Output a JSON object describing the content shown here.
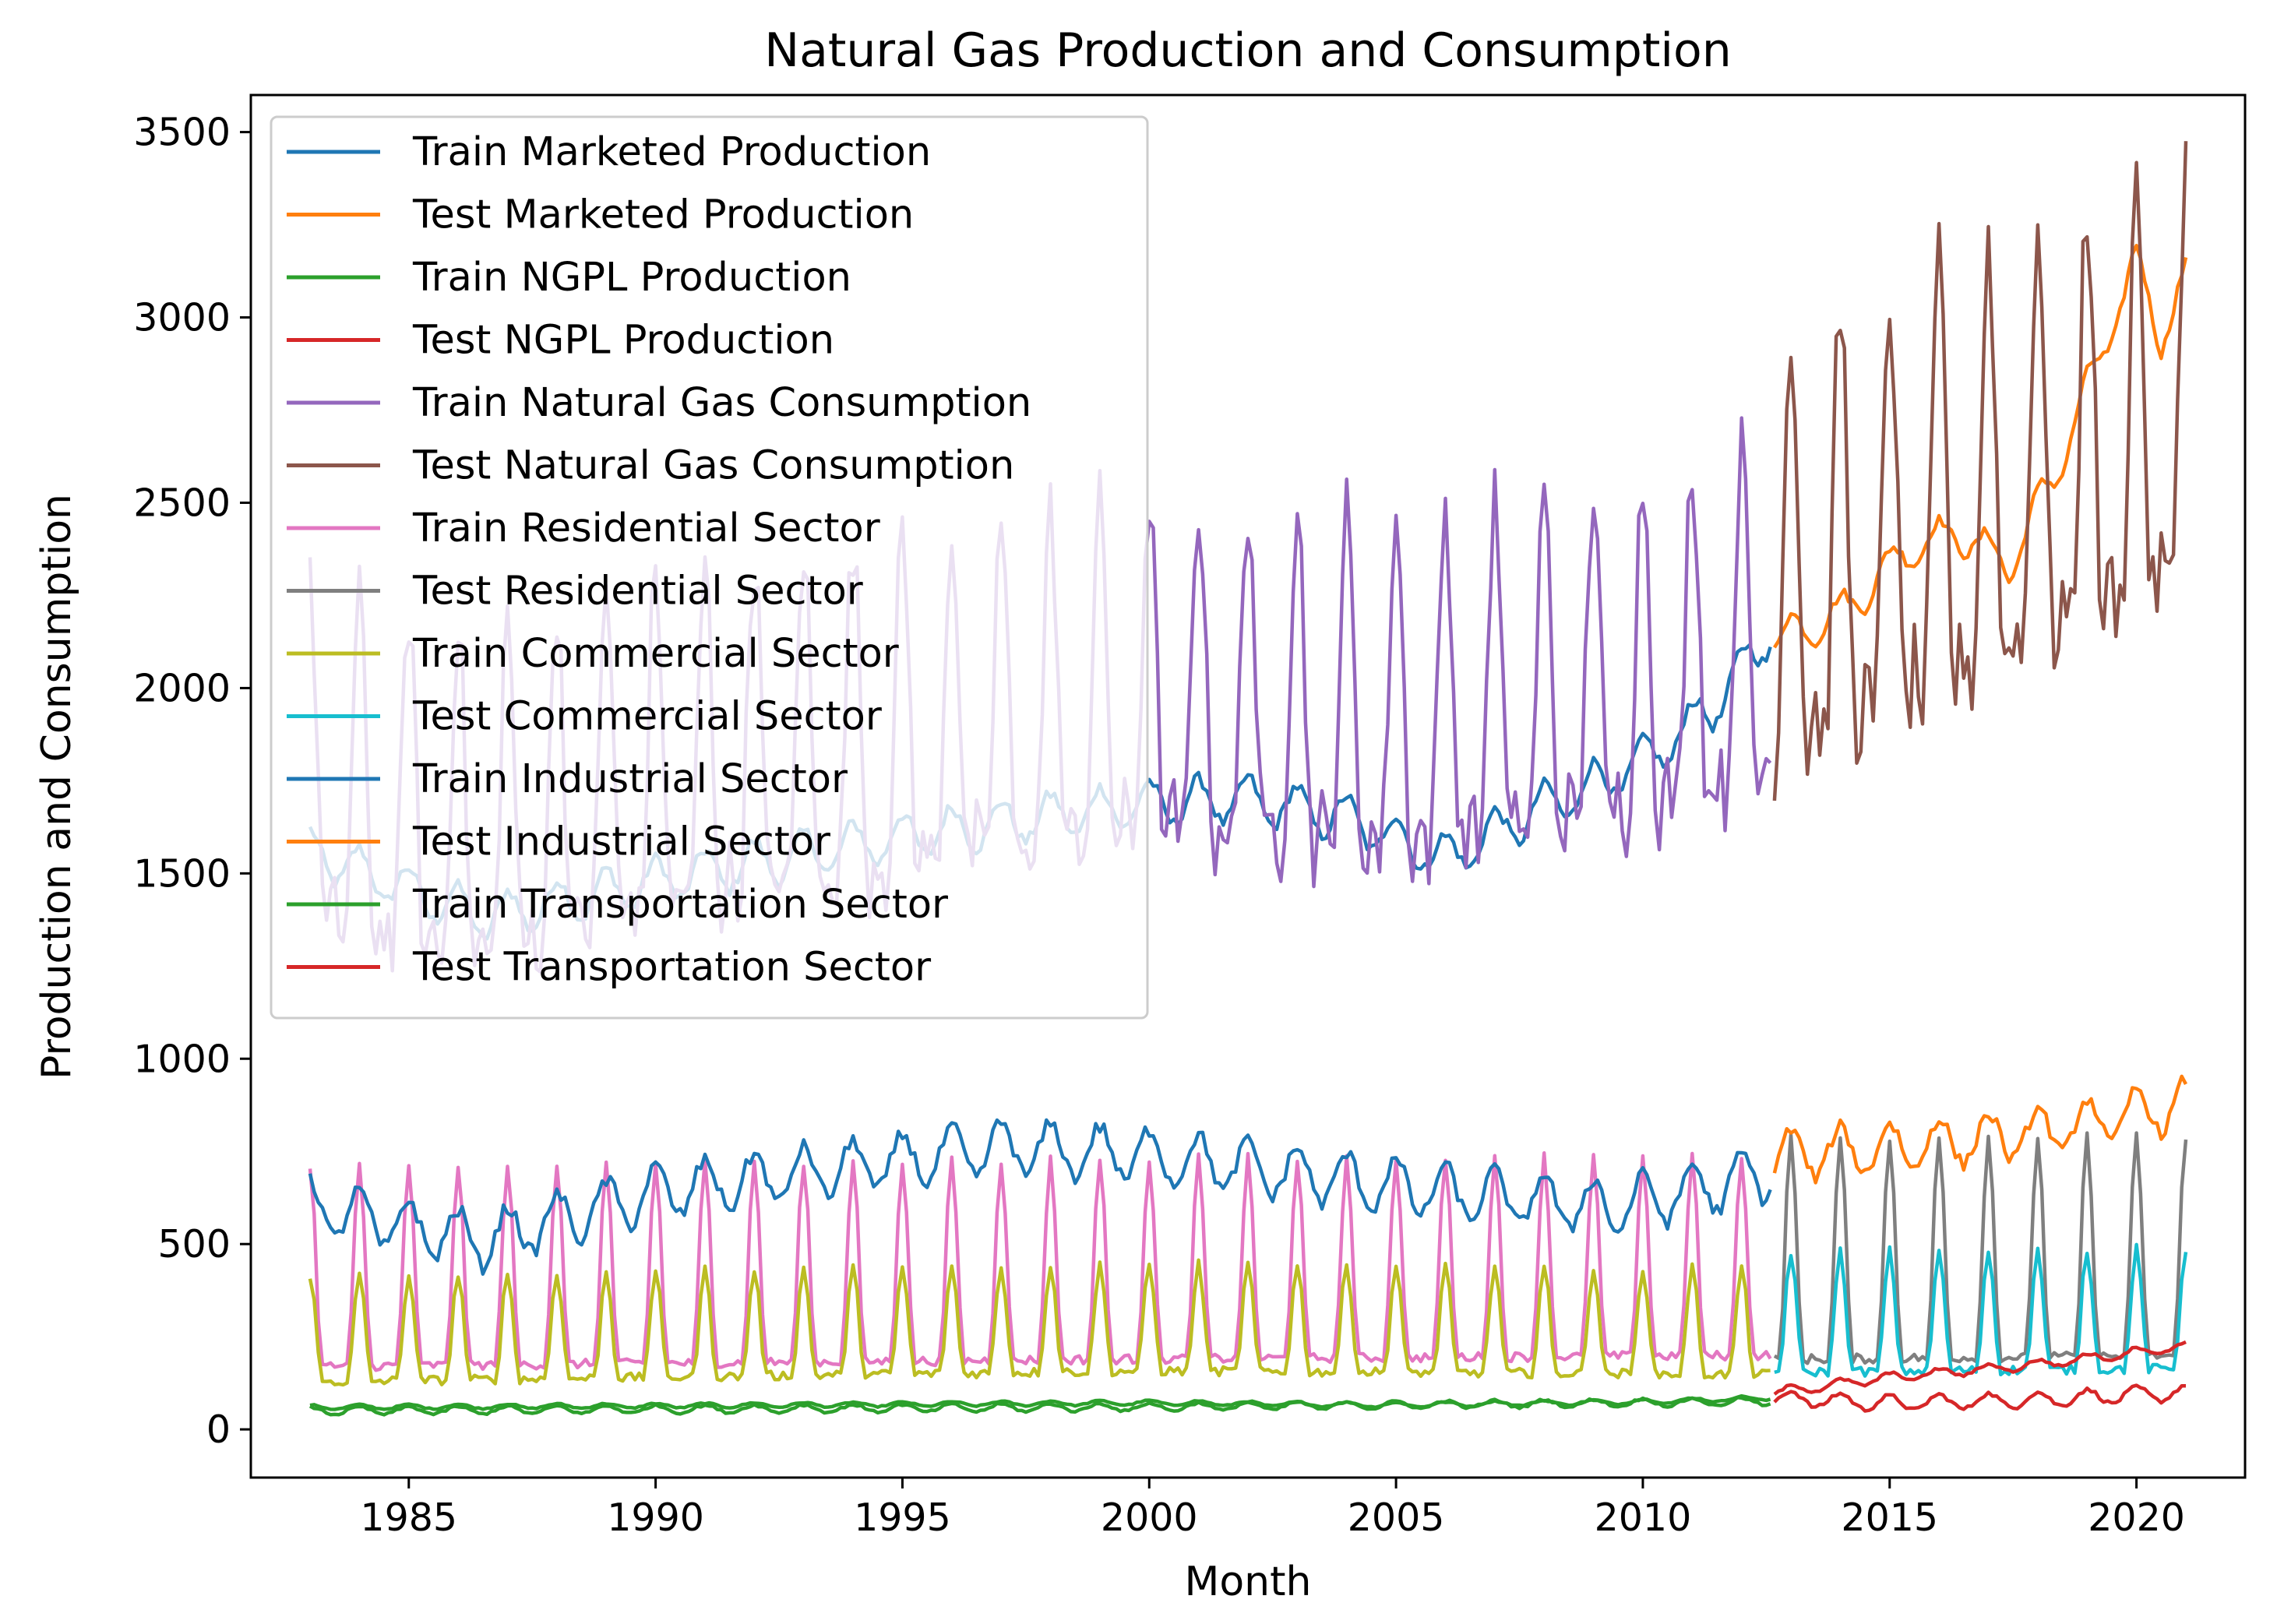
{
  "chart_data": {
    "type": "line",
    "title": "Natural Gas Production and Consumption",
    "xlabel": "Month",
    "ylabel": "Production and Consumption",
    "xlim": [
      1981.8,
      2022.2
    ],
    "ylim": [
      -130,
      3600
    ],
    "x_ticks": [
      1985,
      1990,
      1995,
      2000,
      2005,
      2010,
      2015,
      2020
    ],
    "y_ticks": [
      0,
      500,
      1000,
      1500,
      2000,
      2500,
      3000,
      3500
    ],
    "grid": false,
    "legend_position": "upper-left",
    "train_period": [
      "1983-01",
      "2012-08"
    ],
    "test_period": [
      "2012-09",
      "2021-01"
    ],
    "series": [
      {
        "name": "Train Marketed Production",
        "color": "#1f77b4",
        "points": [
          [
            "1983-01",
            1560
          ],
          [
            "1986-07",
            1380
          ],
          [
            "1990-01",
            1480
          ],
          [
            "1995-01",
            1600
          ],
          [
            "2000-01",
            1690
          ],
          [
            "2002-01",
            1700
          ],
          [
            "2004-01",
            1650
          ],
          [
            "2006-01",
            1540
          ],
          [
            "2008-01",
            1680
          ],
          [
            "2010-01",
            1800
          ],
          [
            "2011-06",
            1950
          ],
          [
            "2012-08",
            2150
          ]
        ],
        "seasonal_amplitude": 60
      },
      {
        "name": "Test Marketed Production",
        "color": "#ff7f0e",
        "points": [
          [
            "2012-09",
            2130
          ],
          [
            "2014-01",
            2200
          ],
          [
            "2015-06",
            2380
          ],
          [
            "2016-06",
            2420
          ],
          [
            "2017-06",
            2330
          ],
          [
            "2018-06",
            2600
          ],
          [
            "2019-06",
            2950
          ],
          [
            "2020-01",
            3150
          ],
          [
            "2020-07",
            2950
          ],
          [
            "2021-01",
            3100
          ]
        ],
        "seasonal_amplitude": 50
      },
      {
        "name": "Train NGPL Production",
        "color": "#2ca02c",
        "points": [
          [
            "1983-01",
            60
          ],
          [
            "1990-01",
            64
          ],
          [
            "2000-01",
            72
          ],
          [
            "2005-01",
            66
          ],
          [
            "2010-01",
            75
          ],
          [
            "2012-08",
            85
          ]
        ],
        "seasonal_amplitude": 6
      },
      {
        "name": "Test NGPL Production",
        "color": "#d62728",
        "points": [
          [
            "2012-09",
            85
          ],
          [
            "2015-01",
            70
          ],
          [
            "2018-01",
            80
          ],
          [
            "2021-01",
            100
          ]
        ],
        "seasonal_amplitude": 20
      },
      {
        "name": "Train Natural Gas Consumption",
        "color": "#9467bd",
        "points": [
          [
            "1983-01",
            1650
          ],
          [
            "1986-07",
            1550
          ],
          [
            "1990-01",
            1700
          ],
          [
            "1995-01",
            1800
          ],
          [
            "2000-01",
            1900
          ],
          [
            "2005-01",
            1850
          ],
          [
            "2010-01",
            1950
          ],
          [
            "2012-08",
            2050
          ]
        ],
        "seasonal_amplitude": 560
      },
      {
        "name": "Test Natural Gas Consumption",
        "color": "#8c564b",
        "points": [
          [
            "2012-09",
            2200
          ],
          [
            "2015-01",
            2300
          ],
          [
            "2018-01",
            2500
          ],
          [
            "2021-01",
            2650
          ]
        ],
        "seasonal_amplitude": 700
      },
      {
        "name": "Train Residential Sector",
        "color": "#e377c2",
        "points": [
          [
            "1983-01",
            380
          ],
          [
            "2000-01",
            400
          ],
          [
            "2012-08",
            410
          ]
        ],
        "seasonal_amplitude": 300,
        "peak_values": {
          "1983": 850,
          "1994": 950,
          "2001": 980,
          "2012": 750
        }
      },
      {
        "name": "Test Residential Sector",
        "color": "#7f7f7f",
        "points": [
          [
            "2012-09",
            420
          ],
          [
            "2021-01",
            430
          ]
        ],
        "seasonal_amplitude": 330,
        "peak_values": {
          "2014": 1040,
          "2015": 930,
          "2018": 980,
          "2021": 870
        }
      },
      {
        "name": "Train Commercial Sector",
        "color": "#bcbd22",
        "points": [
          [
            "1983-01",
            240
          ],
          [
            "2000-01",
            270
          ],
          [
            "2012-08",
            260
          ]
        ],
        "seasonal_amplitude": 160
      },
      {
        "name": "Test Commercial Sector",
        "color": "#17becf",
        "points": [
          [
            "2012-09",
            280
          ],
          [
            "2021-01",
            290
          ]
        ],
        "seasonal_amplitude": 180
      },
      {
        "name": "Train Industrial Sector",
        "color": "#1f77b4",
        "points": [
          [
            "1983-01",
            600
          ],
          [
            "1986-07",
            510
          ],
          [
            "1990-01",
            640
          ],
          [
            "1997-01",
            760
          ],
          [
            "2000-01",
            740
          ],
          [
            "2003-01",
            690
          ],
          [
            "2006-01",
            640
          ],
          [
            "2009-06",
            600
          ],
          [
            "2012-08",
            690
          ]
        ],
        "seasonal_amplitude": 70
      },
      {
        "name": "Test Industrial Sector",
        "color": "#ff7f0e",
        "points": [
          [
            "2012-09",
            740
          ],
          [
            "2015-01",
            760
          ],
          [
            "2018-01",
            800
          ],
          [
            "2021-01",
            880
          ]
        ],
        "seasonal_amplitude": 65
      },
      {
        "name": "Train Transportation Sector",
        "color": "#2ca02c",
        "points": [
          [
            "1983-01",
            50
          ],
          [
            "2000-01",
            60
          ],
          [
            "2012-08",
            75
          ]
        ],
        "seasonal_amplitude": 10
      },
      {
        "name": "Test Transportation Sector",
        "color": "#d62728",
        "points": [
          [
            "2012-09",
            100
          ],
          [
            "2015-01",
            140
          ],
          [
            "2018-01",
            175
          ],
          [
            "2021-01",
            225
          ]
        ],
        "seasonal_amplitude": 12
      }
    ]
  }
}
